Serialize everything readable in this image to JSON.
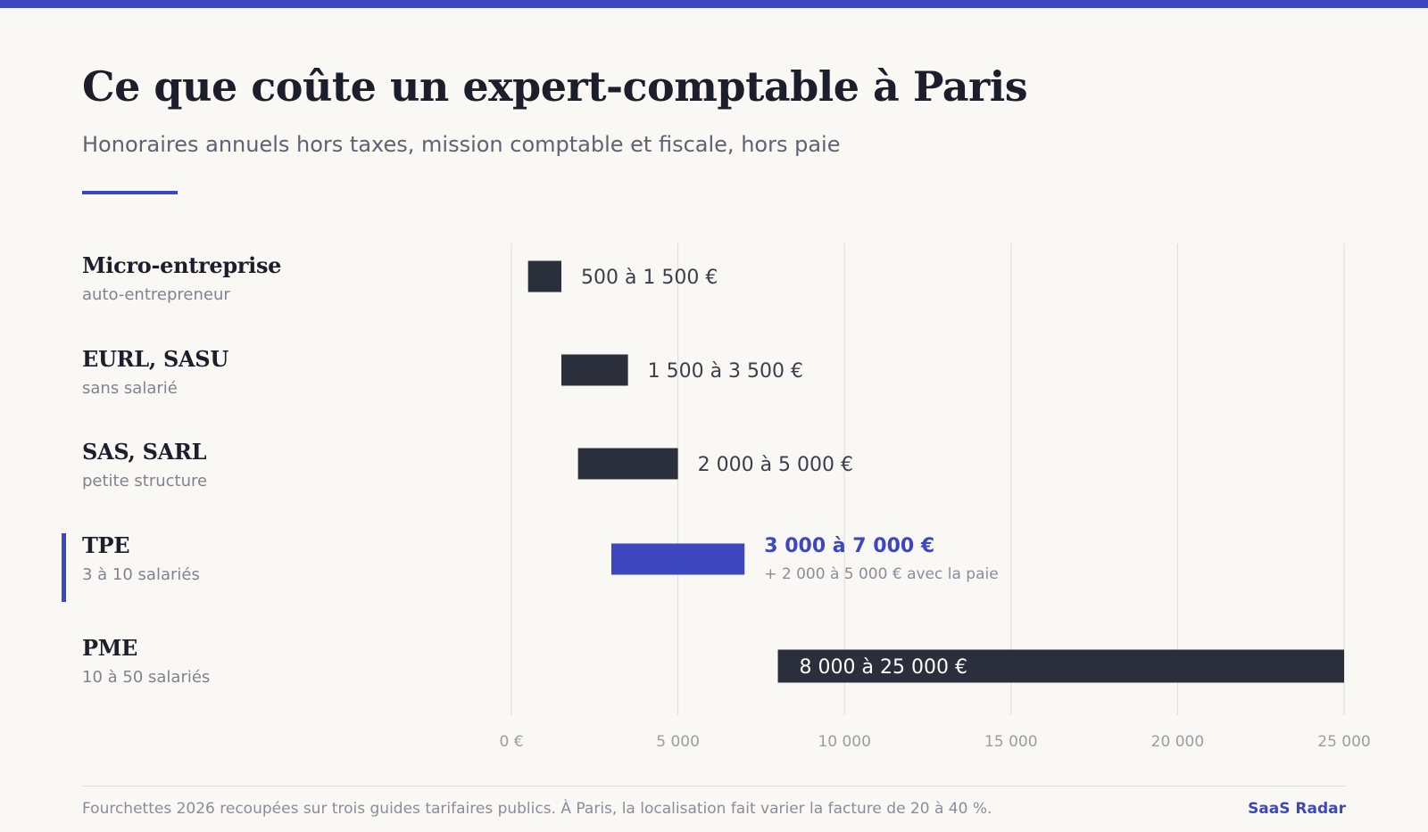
{
  "title": "Ce que coûte un expert-comptable à Paris",
  "subtitle": "Honoraires annuels hors taxes, mission comptable et fiscale, hors paie",
  "footnote": "Fourchettes 2026 recoupées sur trois guides tarifaires publics. À Paris, la localisation fait varier la facture de 20 à 40 %.",
  "brand": "SaaS Radar",
  "colors": {
    "accent": "#3d48c0",
    "bar": "#2b2e3b",
    "text_dark": "#1c1f2b",
    "text_muted": "#80838f",
    "grid": "#e3e1dc",
    "background": "#f9f8f5"
  },
  "chart_data": {
    "type": "bar",
    "orientation": "horizontal-range",
    "xlim": [
      0,
      25000
    ],
    "x_ticks": [
      0,
      5000,
      10000,
      15000,
      20000,
      25000
    ],
    "x_tick_labels": [
      "0 €",
      "5 000",
      "10 000",
      "15 000",
      "20 000",
      "25 000"
    ],
    "grid": true,
    "categories": [
      {
        "name": "Micro-entreprise",
        "sub": "auto-entrepreneur",
        "min": 500,
        "max": 1500,
        "label": "500 à 1 500 €",
        "note": "",
        "highlight": false,
        "label_inside": false
      },
      {
        "name": "EURL, SASU",
        "sub": "sans salarié",
        "min": 1500,
        "max": 3500,
        "label": "1 500 à 3 500 €",
        "note": "",
        "highlight": false,
        "label_inside": false
      },
      {
        "name": "SAS, SARL",
        "sub": "petite structure",
        "min": 2000,
        "max": 5000,
        "label": "2 000 à 5 000 €",
        "note": "",
        "highlight": false,
        "label_inside": false
      },
      {
        "name": "TPE",
        "sub": "3 à 10 salariés",
        "min": 3000,
        "max": 7000,
        "label": "3 000 à 7 000 €",
        "note": "+ 2 000 à 5 000 € avec la paie",
        "highlight": true,
        "label_inside": false
      },
      {
        "name": "PME",
        "sub": "10 à 50 salariés",
        "min": 8000,
        "max": 25000,
        "label": "8 000 à 25 000 €",
        "note": "",
        "highlight": false,
        "label_inside": true
      }
    ]
  }
}
